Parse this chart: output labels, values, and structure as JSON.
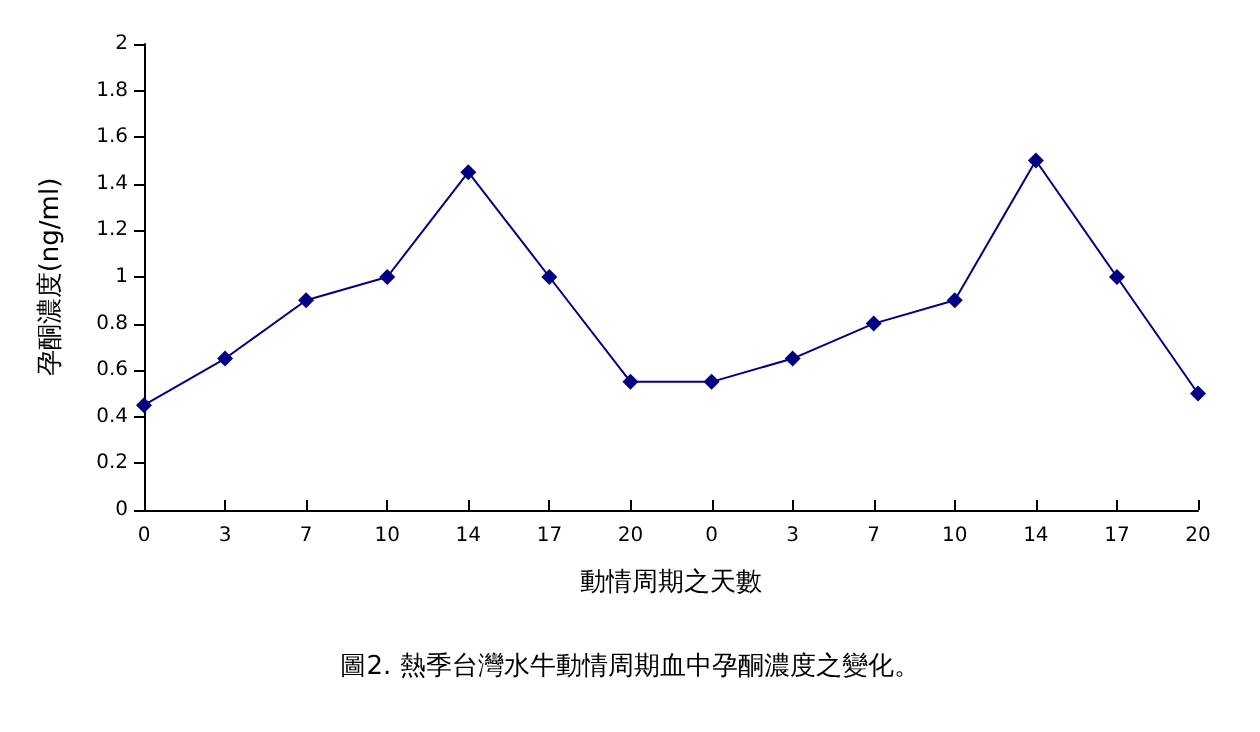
{
  "chart_data": {
    "type": "line",
    "title": "圖2. 熱季台灣水牛動情周期血中孕酮濃度之變化。",
    "xlabel": "動情周期之天數",
    "ylabel": "孕酮濃度(ng/ml)",
    "categories": [
      "0",
      "3",
      "7",
      "10",
      "14",
      "17",
      "20",
      "0",
      "3",
      "7",
      "10",
      "14",
      "17",
      "20"
    ],
    "series": [
      {
        "color": "#000080",
        "values": [
          0.45,
          0.65,
          0.9,
          1.0,
          1.45,
          1.0,
          0.55,
          0.55,
          0.65,
          0.8,
          0.9,
          1.5,
          1.0,
          0.5
        ]
      }
    ],
    "ylim": [
      0,
      2
    ],
    "yticks": [
      0,
      0.2,
      0.4,
      0.6,
      0.8,
      1,
      1.2,
      1.4,
      1.6,
      1.8,
      2
    ],
    "grid": false,
    "marker": "diamond",
    "line_style": "solid"
  }
}
